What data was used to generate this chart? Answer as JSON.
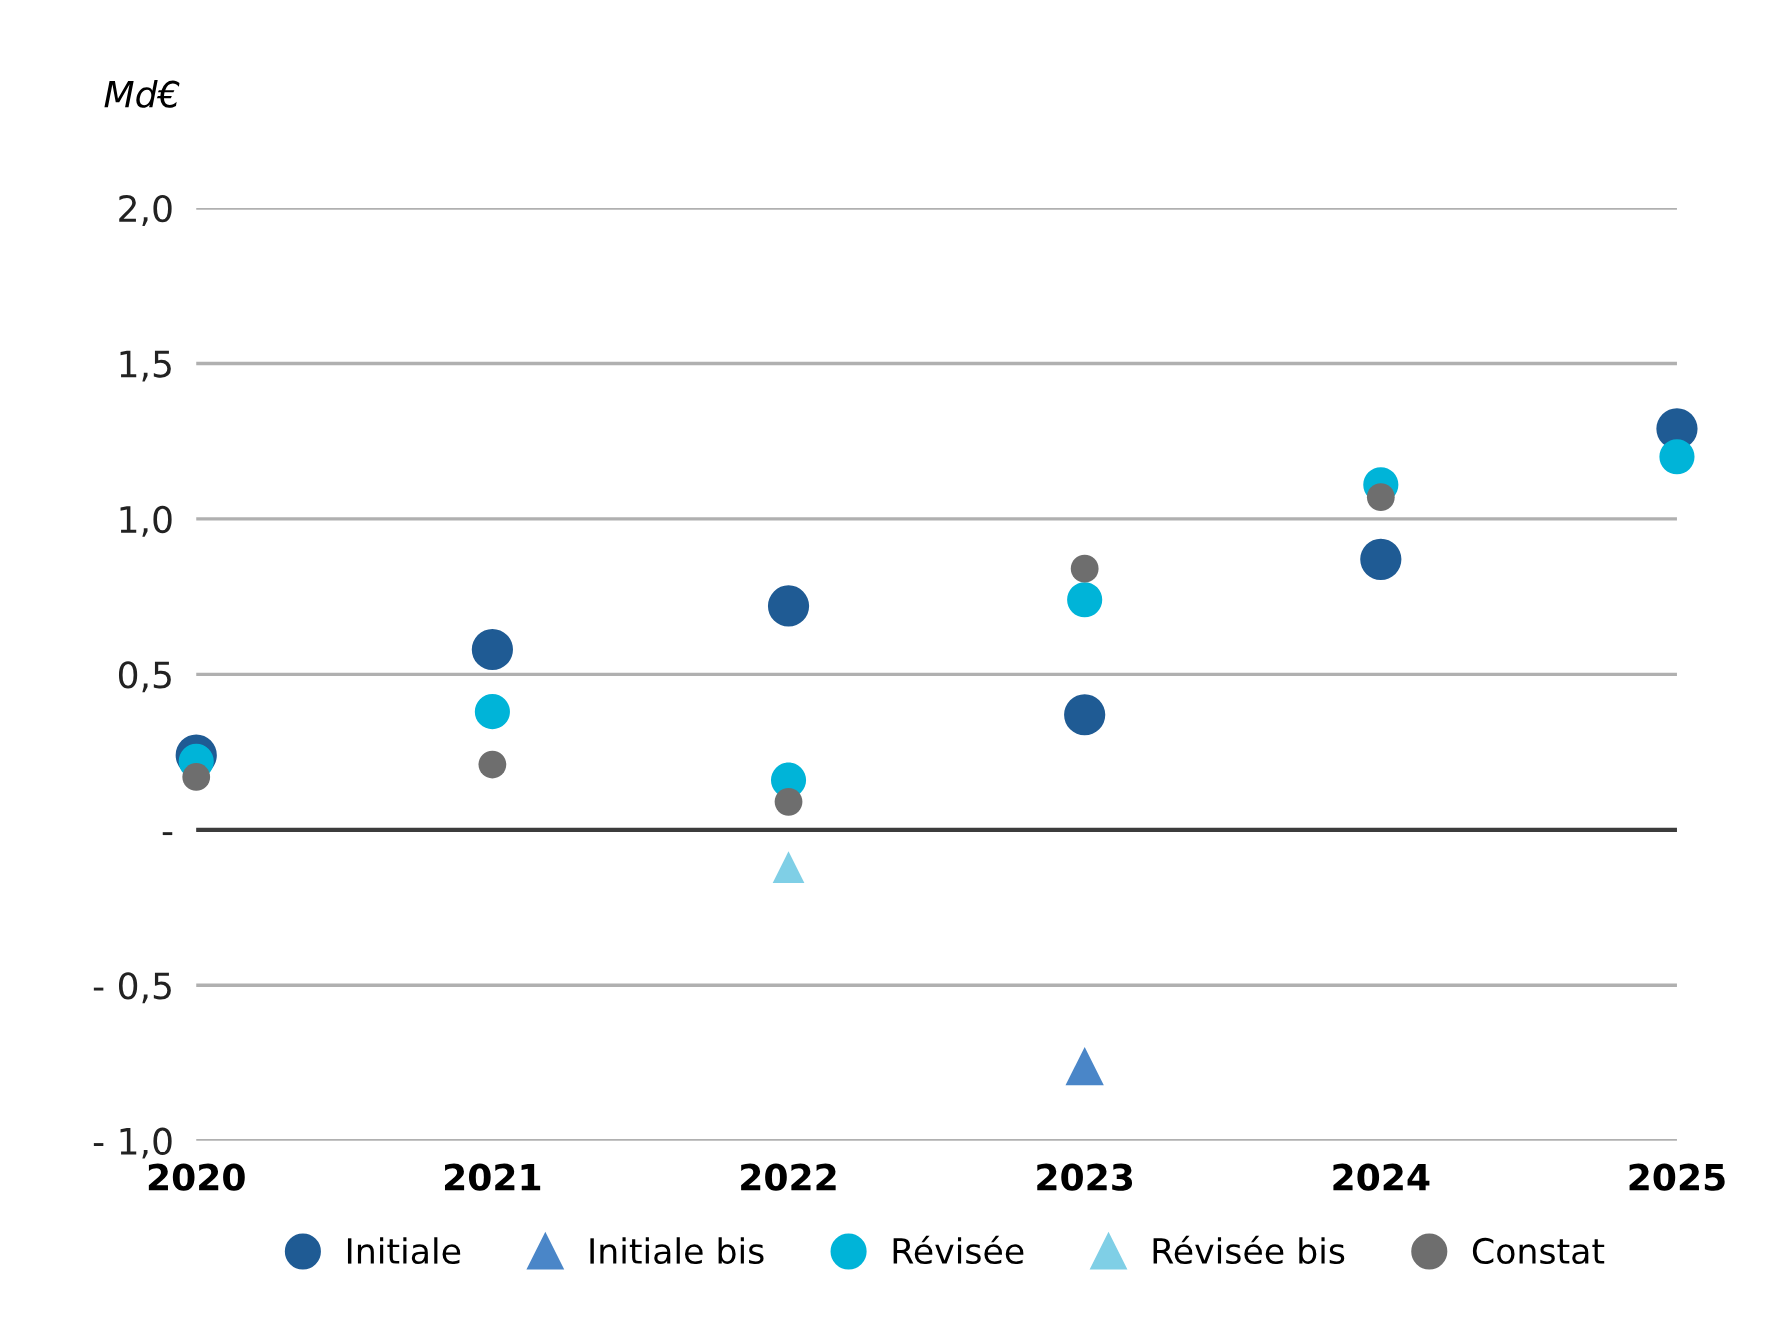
{
  "chart_data": {
    "type": "scatter",
    "ylabel": "Md€",
    "x": [
      2020,
      2021,
      2022,
      2023,
      2024,
      2025
    ],
    "xlim": [
      2020,
      2025
    ],
    "xticks": [
      2020,
      2021,
      2022,
      2023,
      2024,
      2025
    ],
    "ylim": [
      -1.0,
      2.0
    ],
    "yticks": [
      {
        "value": -1.0,
        "label": "- 1,0"
      },
      {
        "value": -0.5,
        "label": "- 0,5"
      },
      {
        "value": 0,
        "label": "-"
      },
      {
        "value": 0.5,
        "label": "0,5"
      },
      {
        "value": 1.0,
        "label": "1,0"
      },
      {
        "value": 1.5,
        "label": "1,5"
      },
      {
        "value": 2.0,
        "label": "2,0"
      }
    ],
    "grid": "y",
    "legend": "bottom",
    "ref_lines": [
      {
        "axis": "y",
        "value": 0,
        "color": "#3c3c3c"
      }
    ],
    "series": [
      {
        "name": "Initiale",
        "color": "#1f5b94",
        "marker": "circle",
        "values": [
          0.24,
          0.58,
          0.72,
          0.37,
          0.87,
          1.29
        ]
      },
      {
        "name": "Initiale bis",
        "color": "#4a86c8",
        "marker": "triangle",
        "values": [
          null,
          null,
          null,
          -0.76,
          null,
          null
        ]
      },
      {
        "name": "Révisée",
        "color": "#00b4d8",
        "marker": "circle",
        "values": [
          0.22,
          0.38,
          0.16,
          0.74,
          1.11,
          1.2
        ]
      },
      {
        "name": "Révisée bis",
        "color": "#7fcfe6",
        "marker": "triangle",
        "values": [
          null,
          null,
          -0.12,
          null,
          null,
          null
        ]
      },
      {
        "name": "Constat",
        "color": "#6e6e6e",
        "marker": "circle",
        "values": [
          0.17,
          0.21,
          0.09,
          0.84,
          1.07,
          null
        ]
      }
    ]
  }
}
